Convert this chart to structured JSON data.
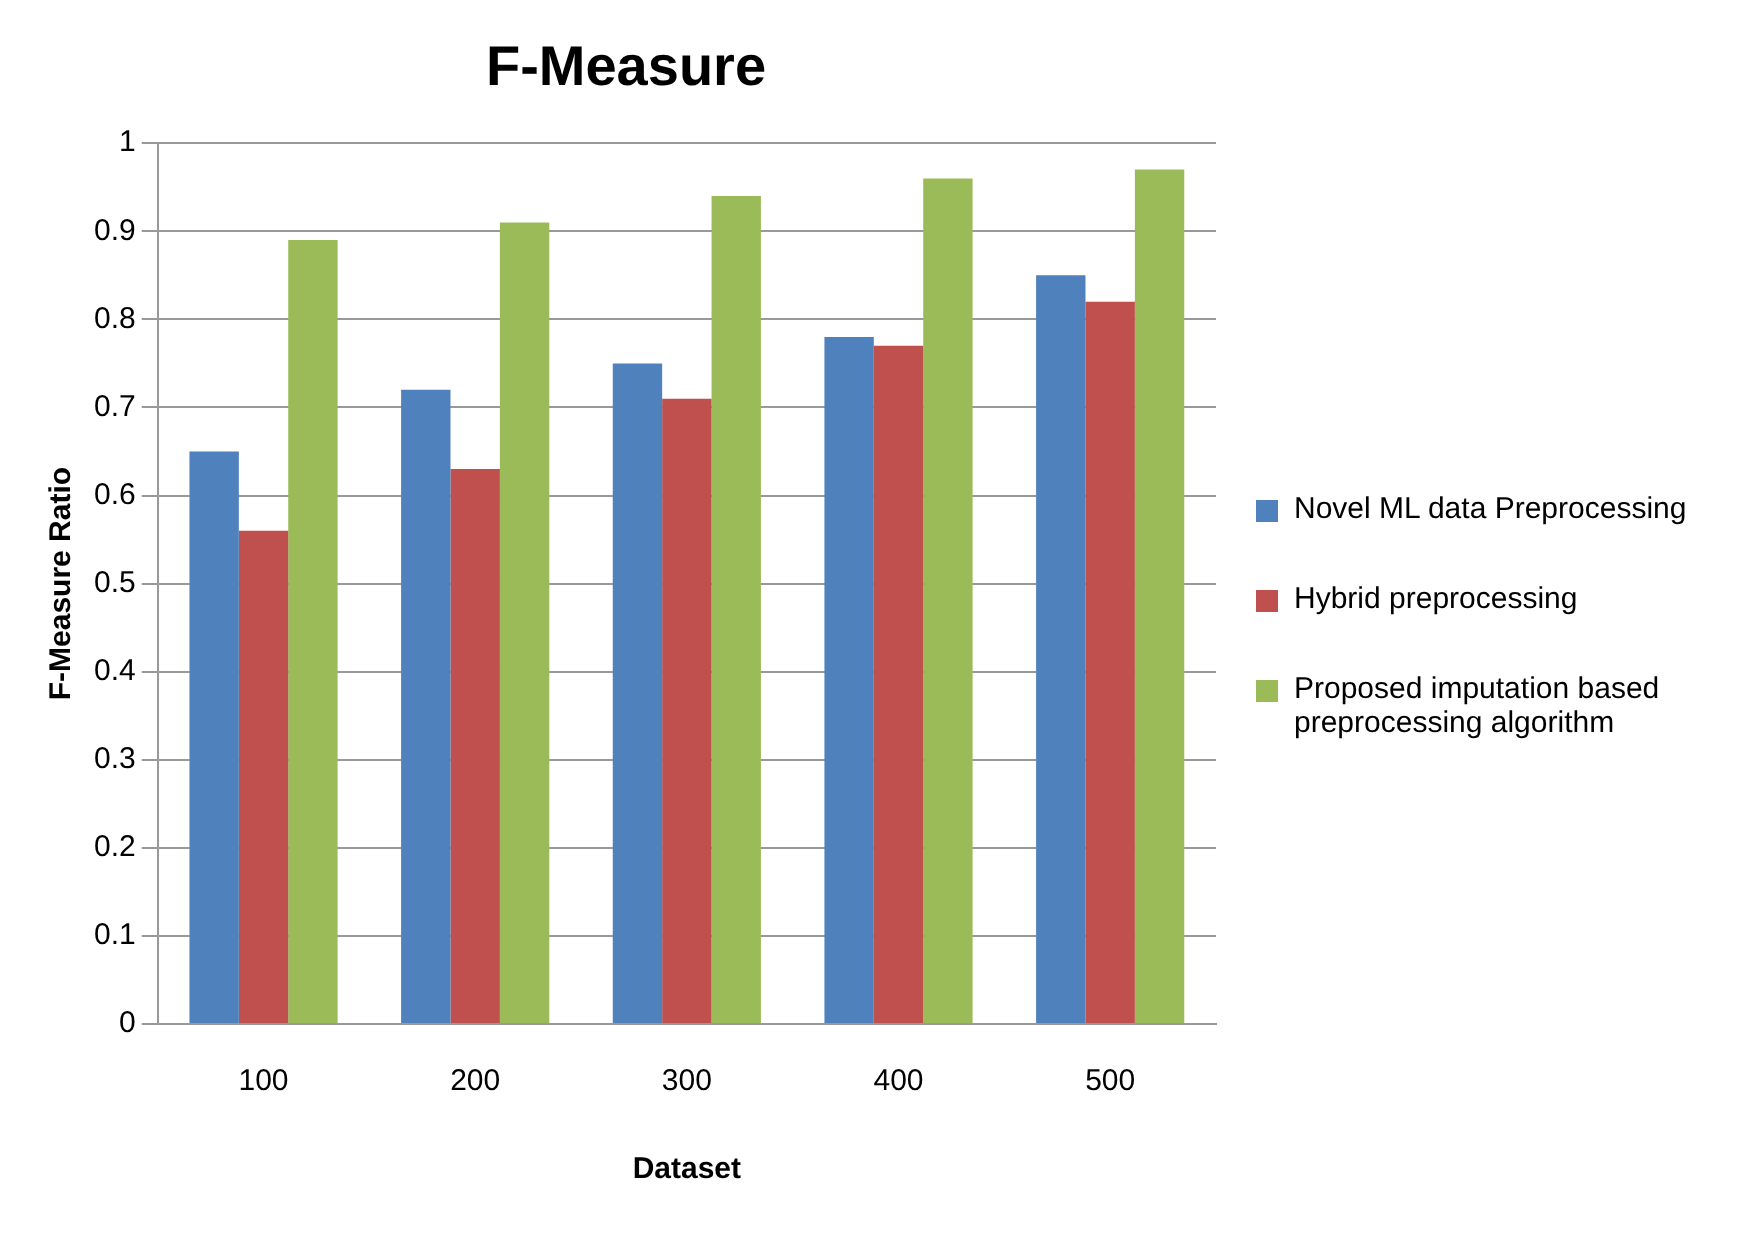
{
  "chart_data": {
    "type": "bar",
    "title": "F-Measure",
    "xlabel": "Dataset",
    "ylabel": "F-Measure Ratio",
    "categories": [
      "100",
      "200",
      "300",
      "400",
      "500"
    ],
    "series": [
      {
        "name": "Novel ML data Preprocessing",
        "color": "#4f81bd",
        "values": [
          0.65,
          0.72,
          0.75,
          0.78,
          0.85
        ]
      },
      {
        "name": "Hybrid preprocessing",
        "color": "#c0504d",
        "values": [
          0.56,
          0.63,
          0.71,
          0.77,
          0.82
        ]
      },
      {
        "name": "Proposed imputation based preprocessing algorithm",
        "color": "#9bbb59",
        "values": [
          0.89,
          0.91,
          0.94,
          0.96,
          0.97
        ]
      }
    ],
    "ylim": [
      0,
      1
    ],
    "yticks": [
      0,
      0.1,
      0.2,
      0.3,
      0.4,
      0.5,
      0.6,
      0.7,
      0.8,
      0.9,
      1
    ],
    "grid": "y",
    "legend": "right"
  }
}
